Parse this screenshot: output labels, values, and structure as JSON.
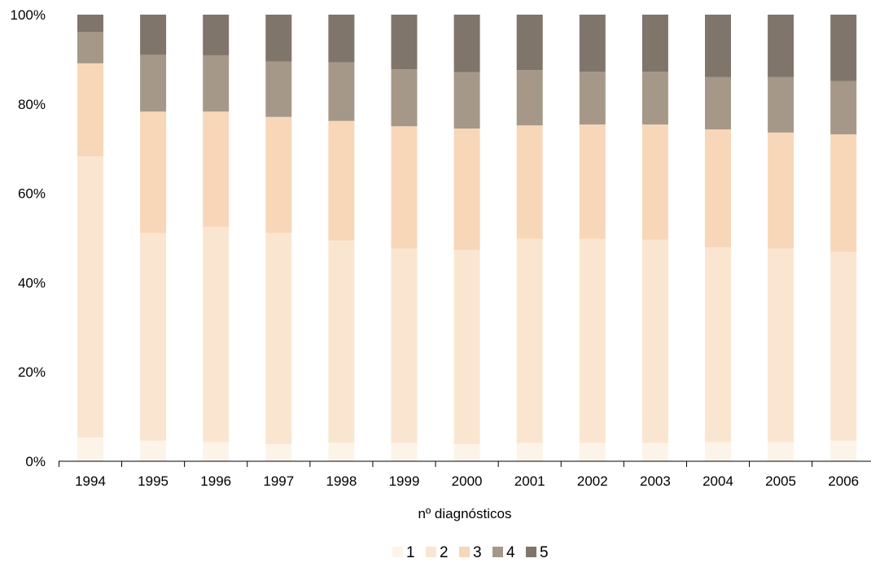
{
  "chart_data": {
    "type": "bar",
    "stacked": true,
    "percent": true,
    "xlabel": "nº diagnósticos",
    "ylim": [
      0,
      100
    ],
    "y_ticks": [
      "0%",
      "20%",
      "40%",
      "60%",
      "80%",
      "100%"
    ],
    "categories": [
      "1994",
      "1995",
      "1996",
      "1997",
      "1998",
      "1999",
      "2000",
      "2001",
      "2002",
      "2003",
      "2004",
      "2005",
      "2006"
    ],
    "series": [
      {
        "name": "1",
        "color": "#fcf4e8",
        "values": [
          5.3,
          4.6,
          4.3,
          3.8,
          4.1,
          4.1,
          3.8,
          4.1,
          4.1,
          4.1,
          4.3,
          4.3,
          4.6
        ]
      },
      {
        "name": "2",
        "color": "#fae6d0",
        "values": [
          63.0,
          46.5,
          48.2,
          47.3,
          45.3,
          43.5,
          43.5,
          45.7,
          45.7,
          45.5,
          43.6,
          43.3,
          42.3
        ]
      },
      {
        "name": "3",
        "color": "#f7d7b8",
        "values": [
          20.8,
          27.2,
          25.8,
          26.0,
          26.8,
          27.4,
          27.2,
          25.4,
          25.6,
          25.8,
          26.4,
          26.0,
          26.3
        ]
      },
      {
        "name": "4",
        "color": "#a69888",
        "values": [
          7.0,
          12.7,
          12.6,
          12.4,
          13.1,
          12.8,
          12.6,
          12.4,
          11.8,
          11.8,
          11.7,
          12.4,
          11.9
        ]
      },
      {
        "name": "5",
        "color": "#7f756b",
        "values": [
          3.9,
          9.0,
          9.1,
          10.5,
          10.7,
          12.2,
          12.9,
          12.4,
          12.8,
          12.8,
          14.0,
          14.0,
          14.9
        ]
      }
    ],
    "legend_position": "bottom",
    "grid": false
  }
}
